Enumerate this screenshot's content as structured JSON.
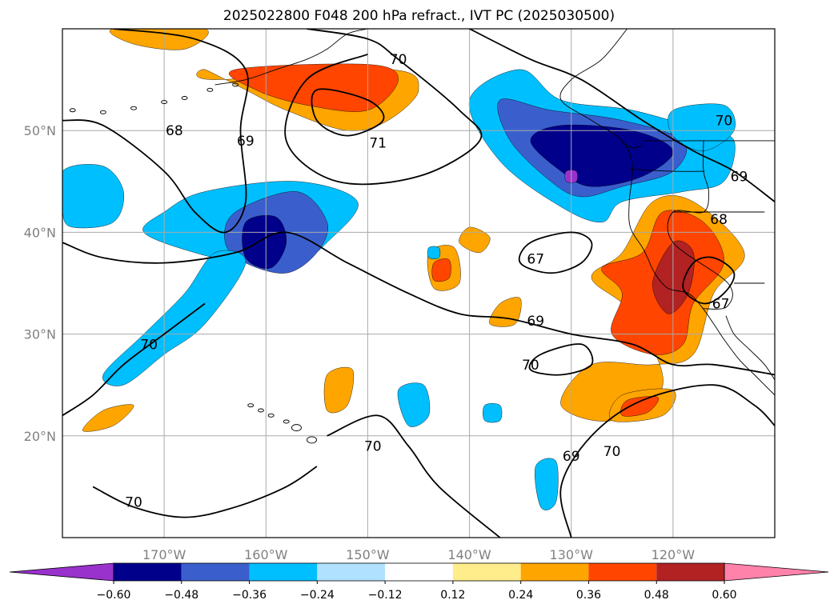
{
  "title": "2025022800 F048 200 hPa refract., IVT PC (2025030500)",
  "axes": {
    "lon_ticks": [
      {
        "value": -170,
        "label": "170°W"
      },
      {
        "value": -160,
        "label": "160°W"
      },
      {
        "value": -150,
        "label": "150°W"
      },
      {
        "value": -140,
        "label": "140°W"
      },
      {
        "value": -130,
        "label": "130°W"
      },
      {
        "value": -120,
        "label": "120°W"
      }
    ],
    "lat_ticks": [
      {
        "value": 20,
        "label": "20°N"
      },
      {
        "value": 30,
        "label": "30°N"
      },
      {
        "value": 40,
        "label": "40°N"
      },
      {
        "value": 50,
        "label": "50°N"
      }
    ],
    "lon_range": [
      -180,
      -110
    ],
    "lat_range": [
      10,
      60
    ],
    "grid": true
  },
  "colorbar": {
    "levels": [
      "−0.60",
      "−0.48",
      "−0.36",
      "−0.24",
      "−0.12",
      "0.12",
      "0.24",
      "0.36",
      "0.48",
      "0.60"
    ],
    "colors": [
      "#9932cc",
      "#00008b",
      "#3a5fcd",
      "#00bfff",
      "#b0e2ff",
      "#ffffff",
      "#ffec8b",
      "#ffa500",
      "#ff4500",
      "#b22222",
      "#ff82ab"
    ],
    "extend": "both"
  },
  "contour_labels": [
    {
      "text": "70",
      "lon": -147,
      "lat": 57
    },
    {
      "text": "71",
      "lon": -149,
      "lat": 48.8
    },
    {
      "text": "68",
      "lon": -169,
      "lat": 50
    },
    {
      "text": "69",
      "lon": -162,
      "lat": 49
    },
    {
      "text": "70",
      "lon": -115,
      "lat": 51
    },
    {
      "text": "69",
      "lon": -113.5,
      "lat": 45.5
    },
    {
      "text": "68",
      "lon": -115.5,
      "lat": 41.3
    },
    {
      "text": "67",
      "lon": -133.5,
      "lat": 37.4
    },
    {
      "text": "67",
      "lon": -115.3,
      "lat": 33
    },
    {
      "text": "69",
      "lon": -133.5,
      "lat": 31.3
    },
    {
      "text": "70",
      "lon": -134,
      "lat": 27
    },
    {
      "text": "70",
      "lon": -171.5,
      "lat": 29
    },
    {
      "text": "70",
      "lon": -149.5,
      "lat": 19
    },
    {
      "text": "69",
      "lon": -130,
      "lat": 18
    },
    {
      "text": "70",
      "lon": -126,
      "lat": 18.5
    },
    {
      "text": "70",
      "lon": -173,
      "lat": 13.5
    }
  ],
  "filled_regions": [
    {
      "color": "#00bfff",
      "pts": [
        [
          -131,
          53
        ],
        [
          -124,
          52
        ],
        [
          -117,
          50
        ],
        [
          -114,
          49
        ],
        [
          -115,
          45
        ],
        [
          -119,
          44
        ],
        [
          -125,
          43
        ],
        [
          -127,
          41
        ],
        [
          -131,
          42.5
        ],
        [
          -137,
          47
        ],
        [
          -140,
          53
        ],
        [
          -135,
          56
        ]
      ]
    },
    {
      "color": "#3a5fcd",
      "pts": [
        [
          -132,
          52
        ],
        [
          -125,
          51
        ],
        [
          -119,
          49
        ],
        [
          -120,
          46
        ],
        [
          -125,
          44.5
        ],
        [
          -129,
          43.5
        ],
        [
          -132,
          45
        ],
        [
          -136,
          49
        ],
        [
          -137,
          53
        ]
      ]
    },
    {
      "color": "#00008b",
      "pts": [
        [
          -131,
          50.5
        ],
        [
          -124,
          50
        ],
        [
          -120,
          48
        ],
        [
          -123,
          45.5
        ],
        [
          -128,
          44.5
        ],
        [
          -131,
          46
        ],
        [
          -134,
          49
        ]
      ]
    },
    {
      "color": "#9932cc",
      "pts": [
        [
          -130.5,
          46
        ],
        [
          -129.5,
          46
        ],
        [
          -129.5,
          45
        ],
        [
          -130.5,
          45
        ]
      ]
    },
    {
      "color": "#00bfff",
      "pts": [
        [
          -120,
          52
        ],
        [
          -115,
          52.5
        ],
        [
          -114,
          50
        ],
        [
          -117,
          48
        ],
        [
          -120,
          49.5
        ]
      ]
    },
    {
      "color": "#00bfff",
      "pts": [
        [
          -166,
          44
        ],
        [
          -157,
          45
        ],
        [
          -151,
          43
        ],
        [
          -154,
          39
        ],
        [
          -157,
          37
        ],
        [
          -162,
          37
        ],
        [
          -167,
          38
        ],
        [
          -172,
          40
        ],
        [
          -170,
          42
        ]
      ]
    },
    {
      "color": "#3a5fcd",
      "pts": [
        [
          -163,
          42
        ],
        [
          -157,
          44
        ],
        [
          -154,
          41
        ],
        [
          -155,
          38
        ],
        [
          -158,
          36
        ],
        [
          -162,
          37
        ],
        [
          -164,
          39
        ]
      ]
    },
    {
      "color": "#00008b",
      "pts": [
        [
          -162,
          41
        ],
        [
          -159,
          41.5
        ],
        [
          -158,
          39
        ],
        [
          -159.5,
          36.5
        ],
        [
          -162,
          37.5
        ]
      ]
    },
    {
      "color": "#00bfff",
      "pts": [
        [
          -180,
          46
        ],
        [
          -176,
          46.5
        ],
        [
          -174,
          44
        ],
        [
          -175,
          41
        ],
        [
          -179,
          40.5
        ],
        [
          -180,
          42
        ]
      ]
    },
    {
      "color": "#00bfff",
      "pts": [
        [
          -165,
          38
        ],
        [
          -162,
          37
        ],
        [
          -166,
          31
        ],
        [
          -170,
          28
        ],
        [
          -174,
          25
        ],
        [
          -176,
          26
        ],
        [
          -172,
          30
        ],
        [
          -168,
          34
        ]
      ]
    },
    {
      "color": "#ffa500",
      "pts": [
        [
          -165,
          55
        ],
        [
          -148,
          56
        ],
        [
          -145,
          54
        ],
        [
          -148,
          51
        ],
        [
          -152,
          50
        ],
        [
          -158,
          52
        ],
        [
          -162,
          54
        ],
        [
          -166,
          56
        ]
      ]
    },
    {
      "color": "#ff4500",
      "pts": [
        [
          -163,
          56
        ],
        [
          -150,
          56.5
        ],
        [
          -147,
          55
        ],
        [
          -150,
          52
        ],
        [
          -156,
          52.5
        ],
        [
          -161,
          54
        ]
      ]
    },
    {
      "color": "#ffa500",
      "pts": [
        [
          -175,
          60
        ],
        [
          -166,
          60
        ],
        [
          -168,
          58
        ],
        [
          -173,
          58.5
        ]
      ]
    },
    {
      "color": "#ffa500",
      "pts": [
        [
          -122,
          43
        ],
        [
          -118,
          43
        ],
        [
          -113,
          38
        ],
        [
          -116,
          34
        ],
        [
          -118,
          28
        ],
        [
          -122,
          27
        ],
        [
          -128,
          27
        ],
        [
          -131,
          23
        ],
        [
          -126,
          21.5
        ],
        [
          -121,
          25
        ],
        [
          -124,
          32
        ],
        [
          -128,
          35.5
        ],
        [
          -125,
          38
        ]
      ]
    },
    {
      "color": "#ff4500",
      "pts": [
        [
          -121,
          42
        ],
        [
          -117,
          41
        ],
        [
          -115,
          37
        ],
        [
          -118,
          33
        ],
        [
          -119,
          29
        ],
        [
          -122,
          28
        ],
        [
          -126,
          30
        ],
        [
          -125,
          34
        ],
        [
          -127,
          36.5
        ],
        [
          -123,
          38
        ]
      ]
    },
    {
      "color": "#b22222",
      "pts": [
        [
          -120,
          39
        ],
        [
          -118,
          38
        ],
        [
          -118.5,
          34
        ],
        [
          -120.5,
          32
        ],
        [
          -122,
          35
        ]
      ]
    },
    {
      "color": "#ffa500",
      "pts": [
        [
          -125,
          24
        ],
        [
          -120,
          24.5
        ],
        [
          -121,
          22
        ],
        [
          -126,
          21.5
        ]
      ]
    },
    {
      "color": "#ff4500",
      "pts": [
        [
          -124.5,
          23.5
        ],
        [
          -121.5,
          23.8
        ],
        [
          -122.5,
          22.3
        ],
        [
          -125,
          22
        ]
      ]
    },
    {
      "color": "#ffa500",
      "pts": [
        [
          -144,
          38
        ],
        [
          -141.5,
          38.5
        ],
        [
          -141,
          35
        ],
        [
          -143.5,
          34.5
        ]
      ]
    },
    {
      "color": "#ff4500",
      "pts": [
        [
          -143.5,
          37
        ],
        [
          -142,
          37.3
        ],
        [
          -142,
          35.5
        ],
        [
          -143.5,
          35.3
        ]
      ]
    },
    {
      "color": "#ffa500",
      "pts": [
        [
          -140,
          40.5
        ],
        [
          -138,
          39.5
        ],
        [
          -139,
          38
        ],
        [
          -141,
          39
        ]
      ]
    },
    {
      "color": "#ffa500",
      "pts": [
        [
          -137,
          33
        ],
        [
          -135,
          33.5
        ],
        [
          -135.5,
          31
        ],
        [
          -138,
          31
        ]
      ]
    },
    {
      "color": "#ffa500",
      "pts": [
        [
          -154,
          26
        ],
        [
          -151.5,
          26.5
        ],
        [
          -152,
          23
        ],
        [
          -154,
          22.5
        ]
      ]
    },
    {
      "color": "#ffa500",
      "pts": [
        [
          -176,
          22.5
        ],
        [
          -173,
          23
        ],
        [
          -175,
          21
        ],
        [
          -178,
          20.5
        ]
      ]
    },
    {
      "color": "#00bfff",
      "pts": [
        [
          -147,
          24.5
        ],
        [
          -144.5,
          25
        ],
        [
          -144,
          22
        ],
        [
          -146,
          21
        ]
      ]
    },
    {
      "color": "#00bfff",
      "pts": [
        [
          -133.5,
          17
        ],
        [
          -131.5,
          17.5
        ],
        [
          -131.5,
          13.5
        ],
        [
          -133,
          13
        ]
      ]
    },
    {
      "color": "#00bfff",
      "pts": [
        [
          -138.5,
          23
        ],
        [
          -137,
          23
        ],
        [
          -137,
          21.5
        ],
        [
          -138.5,
          21.5
        ]
      ]
    },
    {
      "color": "#00bfff",
      "pts": [
        [
          -144,
          38.5
        ],
        [
          -143,
          38.5
        ],
        [
          -143,
          37.5
        ],
        [
          -144,
          37.5
        ]
      ]
    }
  ],
  "contour_lines": [
    {
      "pts": [
        [
          -156,
          60
        ],
        [
          -150,
          59
        ],
        [
          -147,
          57
        ],
        [
          -141,
          52
        ],
        [
          -139,
          49
        ],
        [
          -145,
          45.5
        ],
        [
          -153,
          45
        ],
        [
          -158,
          49
        ],
        [
          -156,
          55
        ],
        [
          -150,
          57.5
        ]
      ]
    },
    {
      "pts": [
        [
          -155,
          54
        ],
        [
          -150,
          53
        ],
        [
          -148.5,
          51
        ],
        [
          -152,
          49.5
        ],
        [
          -155,
          51
        ]
      ]
    },
    {
      "pts": [
        [
          -175,
          60
        ],
        [
          -167,
          59
        ],
        [
          -162,
          56
        ],
        [
          -162.5,
          50
        ],
        [
          -162,
          43
        ],
        [
          -164,
          40
        ],
        [
          -167,
          42
        ],
        [
          -170,
          46
        ],
        [
          -176,
          50.5
        ],
        [
          -180,
          51
        ]
      ]
    },
    {
      "pts": [
        [
          -140,
          60
        ],
        [
          -134,
          57
        ],
        [
          -129,
          55
        ],
        [
          -123,
          51
        ],
        [
          -118,
          48
        ],
        [
          -114,
          46
        ],
        [
          -110,
          43
        ]
      ]
    },
    {
      "pts": [
        [
          -134,
          39
        ],
        [
          -130,
          40
        ],
        [
          -128,
          39
        ],
        [
          -129,
          37
        ],
        [
          -132,
          36
        ],
        [
          -135,
          37
        ]
      ]
    },
    {
      "pts": [
        [
          -118,
          37
        ],
        [
          -116,
          37.5
        ],
        [
          -114,
          36
        ],
        [
          -115,
          34
        ],
        [
          -117,
          33
        ],
        [
          -119,
          34.5
        ]
      ]
    },
    {
      "pts": [
        [
          -180,
          39
        ],
        [
          -176,
          37.5
        ],
        [
          -170,
          37
        ],
        [
          -163,
          38
        ],
        [
          -158,
          40
        ],
        [
          -152,
          37
        ],
        [
          -146,
          34
        ],
        [
          -141,
          32
        ],
        [
          -136,
          31.5
        ],
        [
          -130,
          30
        ],
        [
          -124,
          29
        ],
        [
          -120,
          27
        ],
        [
          -116,
          27
        ],
        [
          -110,
          26
        ]
      ]
    },
    {
      "pts": [
        [
          -180,
          22
        ],
        [
          -177,
          24
        ],
        [
          -174,
          27
        ],
        [
          -170,
          30
        ],
        [
          -166,
          33
        ]
      ]
    },
    {
      "pts": [
        [
          -133,
          28
        ],
        [
          -129,
          29
        ],
        [
          -128,
          27
        ],
        [
          -131,
          26
        ],
        [
          -134,
          26.5
        ]
      ]
    },
    {
      "pts": [
        [
          -154,
          20
        ],
        [
          -149,
          22
        ],
        [
          -146,
          19
        ],
        [
          -143,
          15
        ],
        [
          -137,
          10
        ]
      ]
    },
    {
      "pts": [
        [
          -130,
          10
        ],
        [
          -131,
          15
        ],
        [
          -128,
          20
        ],
        [
          -123,
          23.5
        ],
        [
          -116,
          25
        ],
        [
          -112,
          23
        ],
        [
          -110,
          21
        ]
      ]
    },
    {
      "pts": [
        [
          -177,
          15
        ],
        [
          -173,
          13
        ],
        [
          -168,
          12
        ],
        [
          -163,
          13
        ],
        [
          -158,
          15
        ],
        [
          -155,
          17
        ]
      ]
    }
  ]
}
